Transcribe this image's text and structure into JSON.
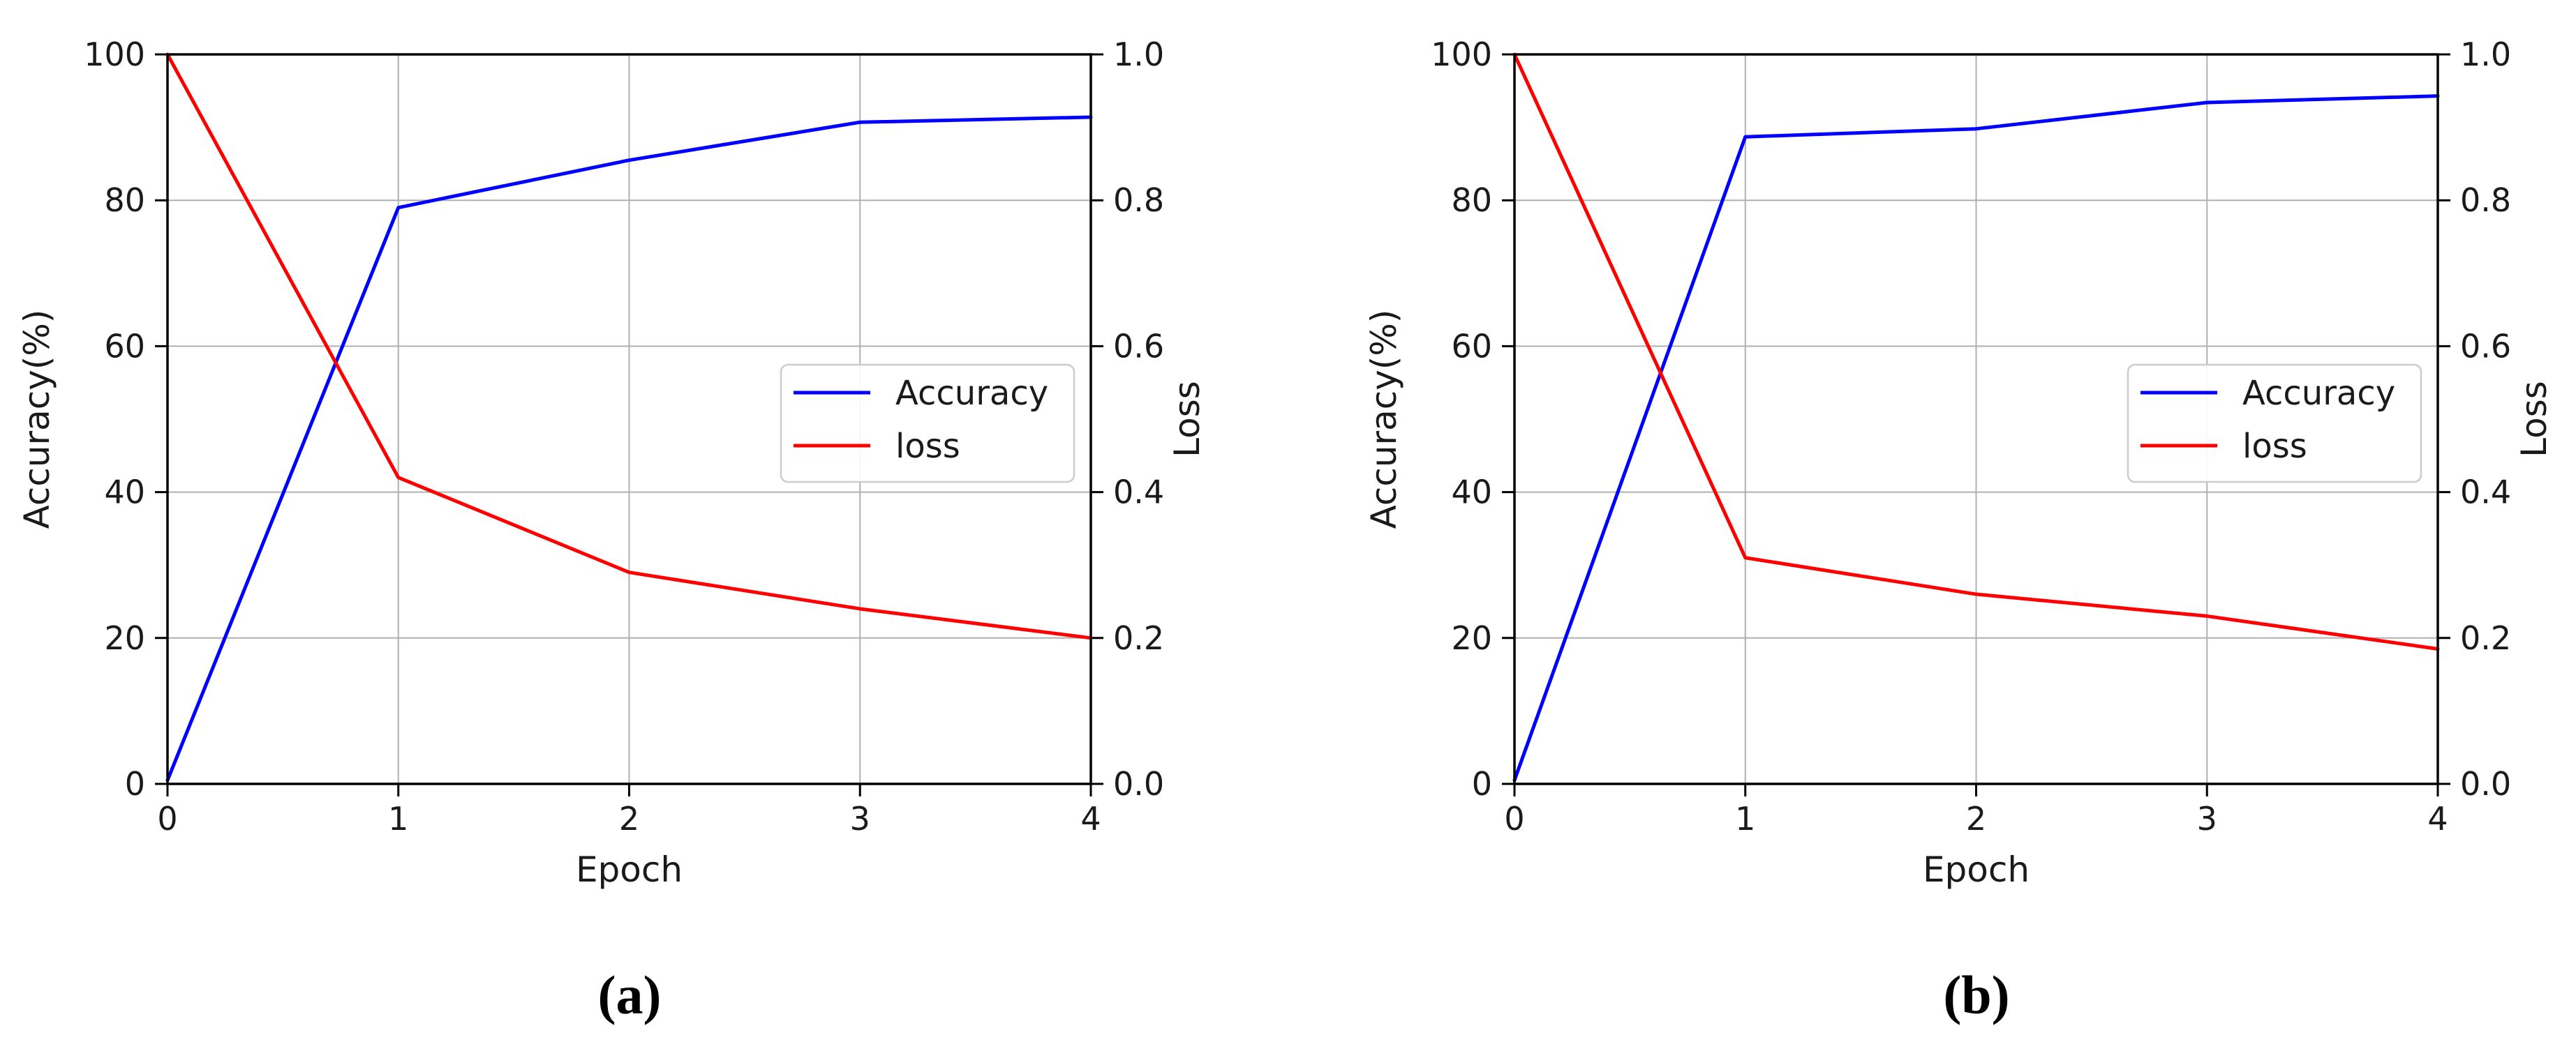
{
  "figure": {
    "background": "#ffffff"
  },
  "colors": {
    "accuracy_line": "#0000ff",
    "loss_line": "#ff0000",
    "grid": "#b0b0b0",
    "axis": "#000000",
    "tick_text": "#1a1a1a",
    "legend_border": "#cccccc",
    "legend_bg": "rgba(255,255,255,0.9)"
  },
  "chart_data": [
    {
      "id": "a",
      "type": "line",
      "caption": "(a)",
      "xlabel": "Epoch",
      "ylabel_left": "Accuracy(%)",
      "ylabel_right": "Loss",
      "x": [
        0,
        1,
        2,
        3,
        4
      ],
      "xtick_labels": [
        "0",
        "1",
        "2",
        "3",
        "4"
      ],
      "ytick_left_values": [
        0,
        20,
        40,
        60,
        80,
        100
      ],
      "ytick_left_labels": [
        "0",
        "20",
        "40",
        "60",
        "80",
        "100"
      ],
      "ytick_right_values": [
        0.0,
        0.2,
        0.4,
        0.6,
        0.8,
        1.0
      ],
      "ytick_right_labels": [
        "0.0",
        "0.2",
        "0.4",
        "0.6",
        "0.8",
        "1.0"
      ],
      "ylim_left": [
        0,
        100
      ],
      "ylim_right": [
        0,
        1
      ],
      "grid": true,
      "legend_position": "center right",
      "series": [
        {
          "name": "Accuracy",
          "axis": "left",
          "color_key": "accuracy_line",
          "values": [
            0.5,
            79,
            85.5,
            90.7,
            91.4
          ]
        },
        {
          "name": "loss",
          "axis": "right",
          "color_key": "loss_line",
          "values": [
            1.0,
            0.42,
            0.29,
            0.24,
            0.2
          ]
        }
      ]
    },
    {
      "id": "b",
      "type": "line",
      "caption": "(b)",
      "xlabel": "Epoch",
      "ylabel_left": "Accuracy(%)",
      "ylabel_right": "Loss",
      "x": [
        0,
        1,
        2,
        3,
        4
      ],
      "xtick_labels": [
        "0",
        "1",
        "2",
        "3",
        "4"
      ],
      "ytick_left_values": [
        0,
        20,
        40,
        60,
        80,
        100
      ],
      "ytick_left_labels": [
        "0",
        "20",
        "40",
        "60",
        "80",
        "100"
      ],
      "ytick_right_values": [
        0.0,
        0.2,
        0.4,
        0.6,
        0.8,
        1.0
      ],
      "ytick_right_labels": [
        "0.0",
        "0.2",
        "0.4",
        "0.6",
        "0.8",
        "1.0"
      ],
      "ylim_left": [
        0,
        100
      ],
      "ylim_right": [
        0,
        1
      ],
      "grid": true,
      "legend_position": "center right",
      "series": [
        {
          "name": "Accuracy",
          "axis": "left",
          "color_key": "accuracy_line",
          "values": [
            0.5,
            88.7,
            89.8,
            93.4,
            94.3
          ]
        },
        {
          "name": "loss",
          "axis": "right",
          "color_key": "loss_line",
          "values": [
            1.0,
            0.31,
            0.26,
            0.23,
            0.185
          ]
        }
      ]
    }
  ]
}
